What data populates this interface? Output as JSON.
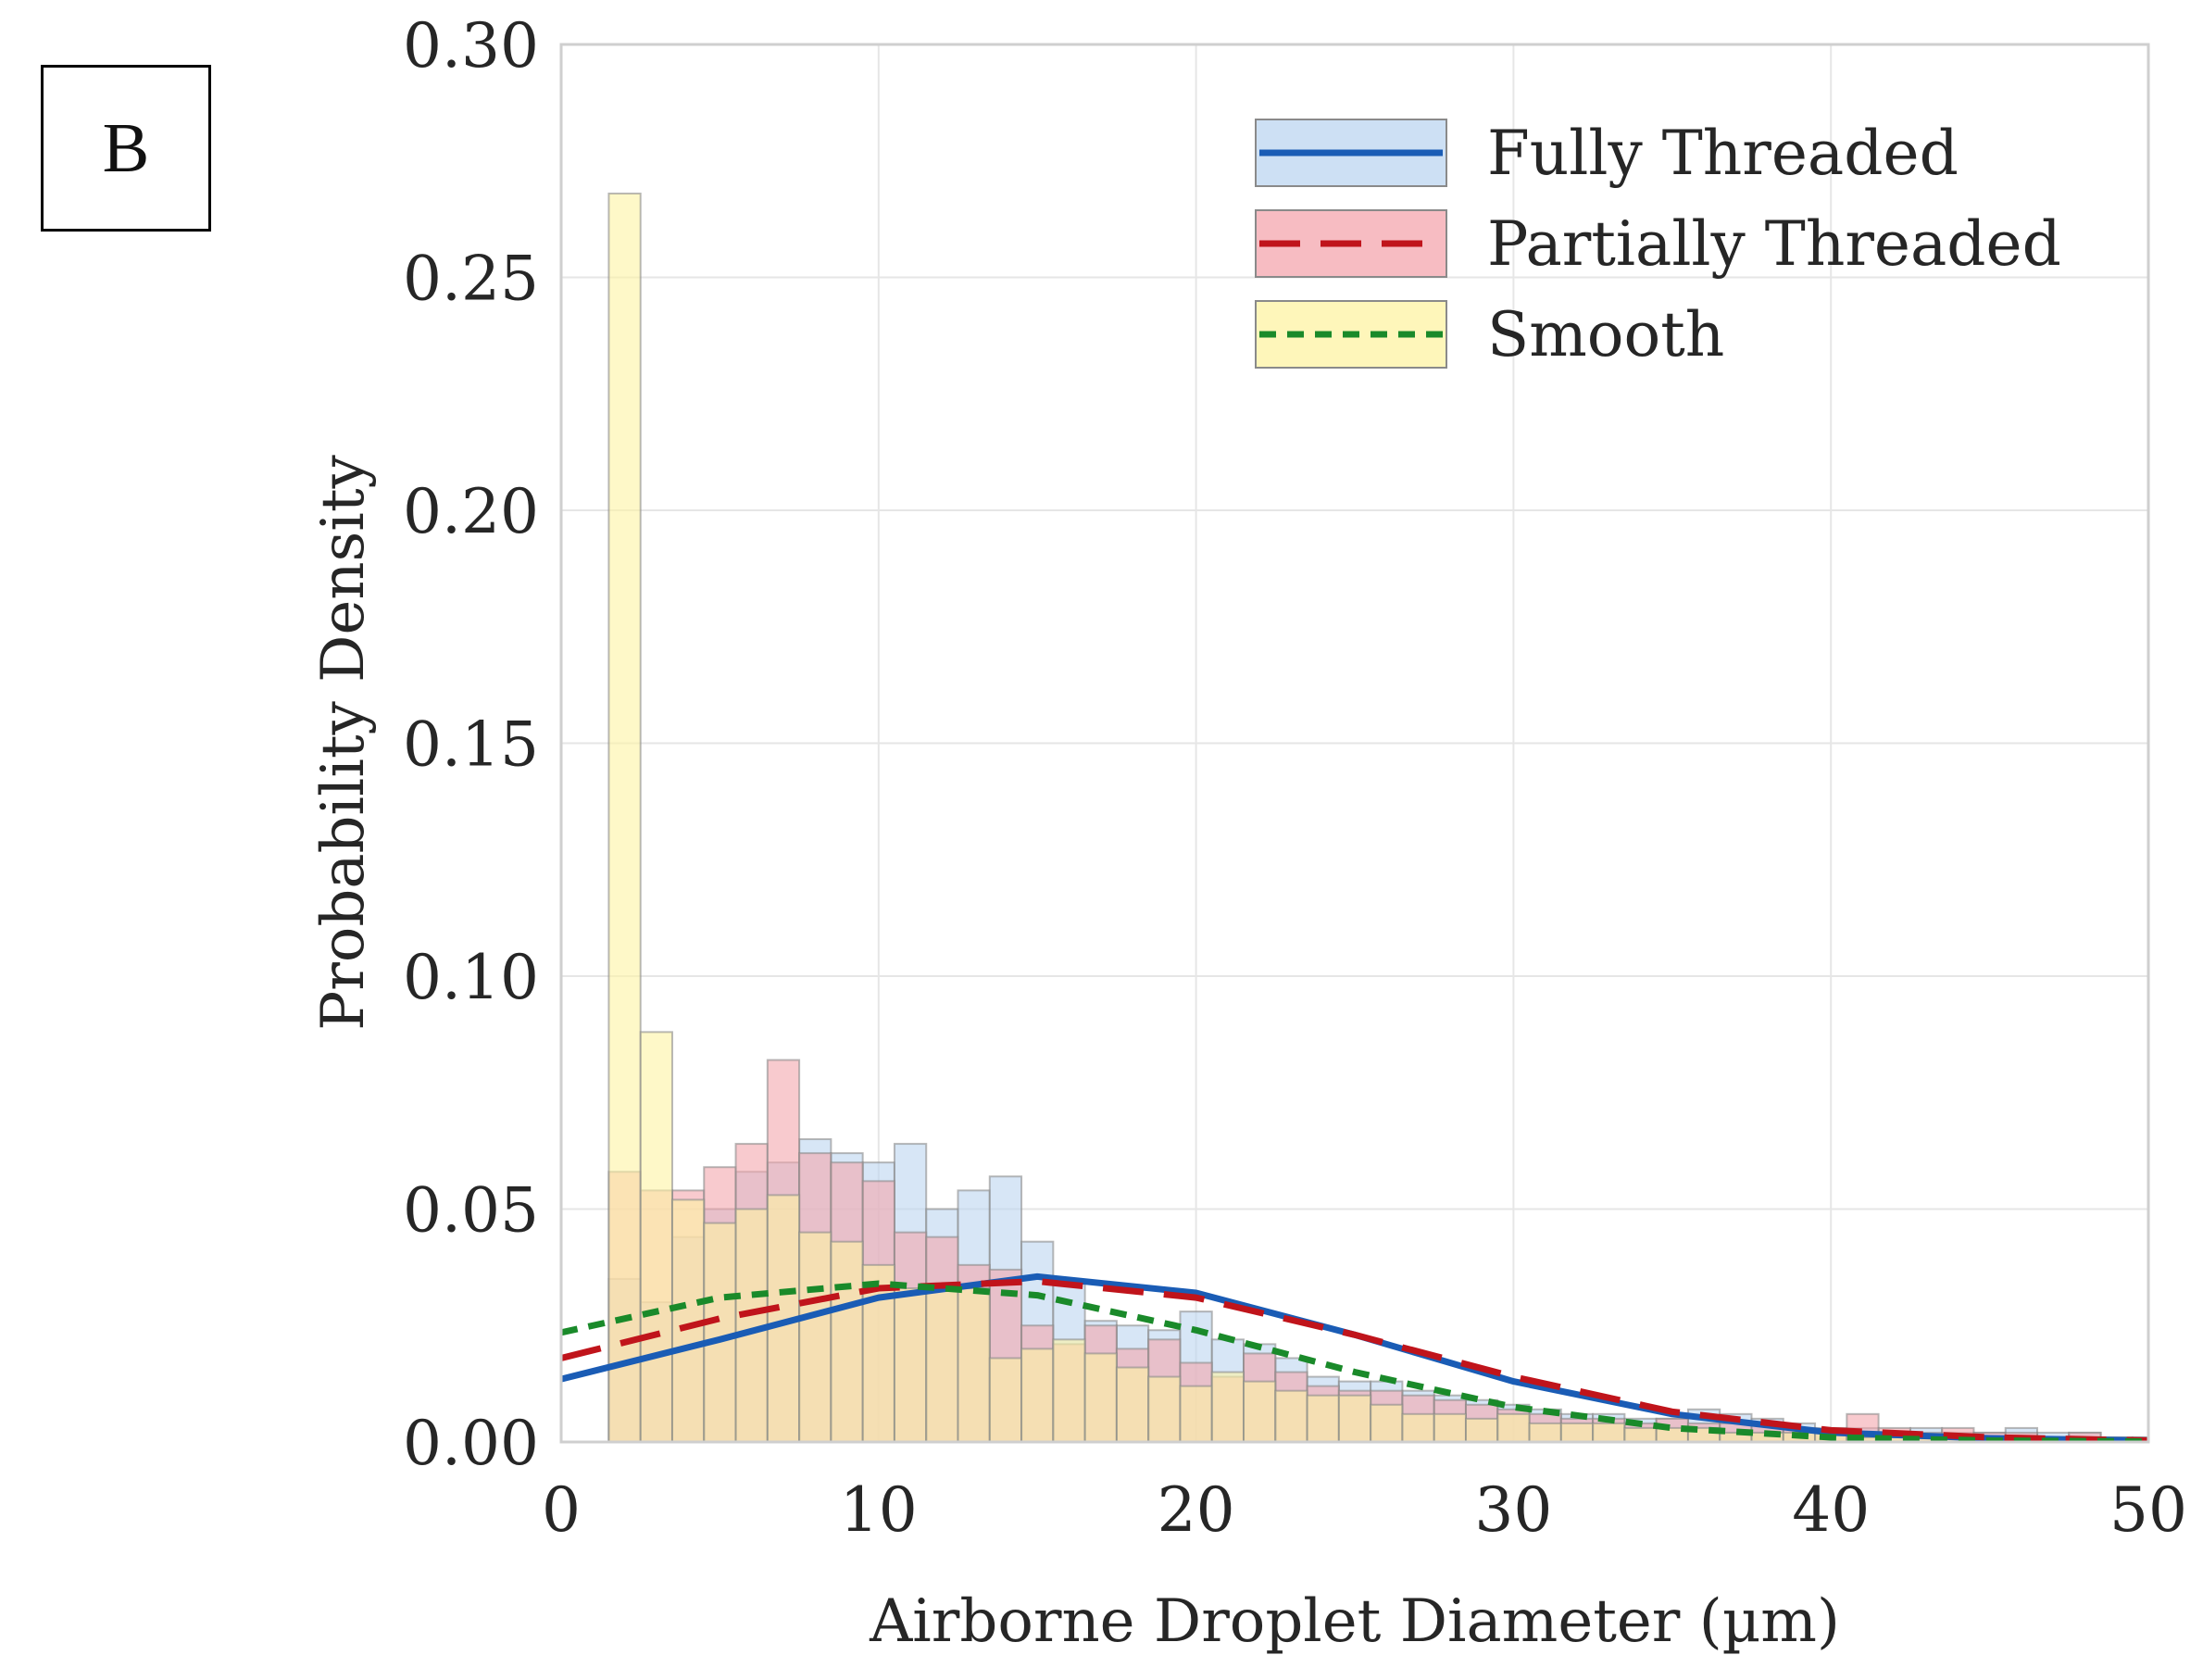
{
  "panel_label": "B",
  "chart_data": {
    "type": "histogram",
    "title": "",
    "xlabel": "Airborne Droplet Diameter (µm)",
    "ylabel": "Probability Density",
    "xlim": [
      0,
      50
    ],
    "ylim": [
      0,
      0.3
    ],
    "x_ticks": [
      "0",
      "10",
      "20",
      "30",
      "40",
      "50"
    ],
    "y_ticks": [
      "0.00",
      "0.05",
      "0.10",
      "0.15",
      "0.20",
      "0.25",
      "0.30"
    ],
    "grid": true,
    "legend_position": "top-right",
    "bin_edges": [
      1.5,
      2.5,
      3.5,
      4.5,
      5.5,
      6.5,
      7.5,
      8.5,
      9.5,
      10.5,
      11.5,
      12.5,
      13.5,
      14.5,
      15.5,
      16.5,
      17.5,
      18.5,
      19.5,
      20.5,
      21.5,
      22.5,
      23.5,
      24.5,
      25.5,
      26.5,
      27.5,
      28.5,
      29.5,
      30.5,
      31.5,
      32.5,
      33.5,
      34.5,
      35.5,
      36.5,
      37.5,
      38.5,
      39.5,
      40.5,
      41.5,
      42.5,
      43.5,
      44.5,
      45.5,
      46.5,
      47.5,
      48.5,
      49.5,
      50.5
    ],
    "series": [
      {
        "name": "Fully Threaded",
        "fill_color": "#bcd6f0",
        "line_color": "#1a5cb5",
        "line_style": "solid",
        "values": [
          0.035,
          0.03,
          0.044,
          0.05,
          0.058,
          0.06,
          0.065,
          0.062,
          0.06,
          0.064,
          0.05,
          0.054,
          0.057,
          0.043,
          0.034,
          0.026,
          0.025,
          0.024,
          0.028,
          0.022,
          0.021,
          0.018,
          0.014,
          0.013,
          0.013,
          0.011,
          0.01,
          0.009,
          0.008,
          0.007,
          0.006,
          0.006,
          0.005,
          0.005,
          0.007,
          0.006,
          0.005,
          0.004,
          0.003,
          0.003,
          0.002,
          0.003,
          0.002,
          0.002,
          0.003,
          0.002,
          0.002,
          0.001,
          0.001,
          0.003
        ],
        "fit": {
          "peak_x": 15.5,
          "peak_y": 0.0355,
          "x": [
            0,
            5,
            10,
            15,
            20,
            25,
            30,
            35,
            40,
            45,
            50
          ],
          "y": [
            0.0135,
            0.022,
            0.031,
            0.0355,
            0.032,
            0.023,
            0.013,
            0.006,
            0.002,
            0.0008,
            0.0003
          ]
        }
      },
      {
        "name": "Partially Threaded",
        "fill_color": "#f4a6ad",
        "line_color": "#c0141b",
        "line_style": "dashed",
        "values": [
          0.058,
          0.054,
          0.054,
          0.059,
          0.064,
          0.082,
          0.062,
          0.06,
          0.056,
          0.045,
          0.044,
          0.038,
          0.037,
          0.025,
          0.021,
          0.025,
          0.02,
          0.022,
          0.017,
          0.014,
          0.019,
          0.015,
          0.012,
          0.011,
          0.011,
          0.01,
          0.009,
          0.008,
          0.007,
          0.006,
          0.005,
          0.005,
          0.004,
          0.005,
          0.004,
          0.004,
          0.004,
          0.003,
          0.002,
          0.006,
          0.003,
          0.002,
          0.003,
          0.002,
          0.002,
          0.001,
          0.002,
          0.001,
          0.001,
          0.001
        ],
        "fit": {
          "peak_x": 14.5,
          "peak_y": 0.0345,
          "x": [
            0,
            5,
            10,
            15,
            20,
            25,
            30,
            35,
            40,
            45,
            50
          ],
          "y": [
            0.018,
            0.0265,
            0.033,
            0.0345,
            0.031,
            0.023,
            0.014,
            0.0065,
            0.0025,
            0.001,
            0.0003
          ]
        }
      },
      {
        "name": "Smooth",
        "fill_color": "#fdf3a3",
        "line_color": "#1a8a2a",
        "line_style": "dotted",
        "values": [
          0.268,
          0.088,
          0.052,
          0.047,
          0.05,
          0.053,
          0.045,
          0.043,
          0.038,
          0.033,
          0.033,
          0.033,
          0.018,
          0.02,
          0.022,
          0.019,
          0.016,
          0.014,
          0.012,
          0.015,
          0.013,
          0.011,
          0.01,
          0.01,
          0.008,
          0.006,
          0.006,
          0.005,
          0.006,
          0.004,
          0.004,
          0.004,
          0.003,
          0.003,
          0.003,
          0.002,
          0.002,
          0.002,
          0.002,
          0.001,
          0.001,
          0.001,
          0.001,
          0.001,
          0.001,
          0.001,
          0.0005,
          0.0005,
          0.0005,
          0.0005
        ],
        "fit": {
          "peak_x": 11,
          "peak_y": 0.034,
          "x": [
            0,
            5,
            10,
            15,
            20,
            25,
            30,
            35,
            40,
            45,
            50
          ],
          "y": [
            0.0235,
            0.031,
            0.034,
            0.0315,
            0.024,
            0.015,
            0.0075,
            0.003,
            0.001,
            0.0003,
            0.0001
          ]
        }
      }
    ]
  }
}
